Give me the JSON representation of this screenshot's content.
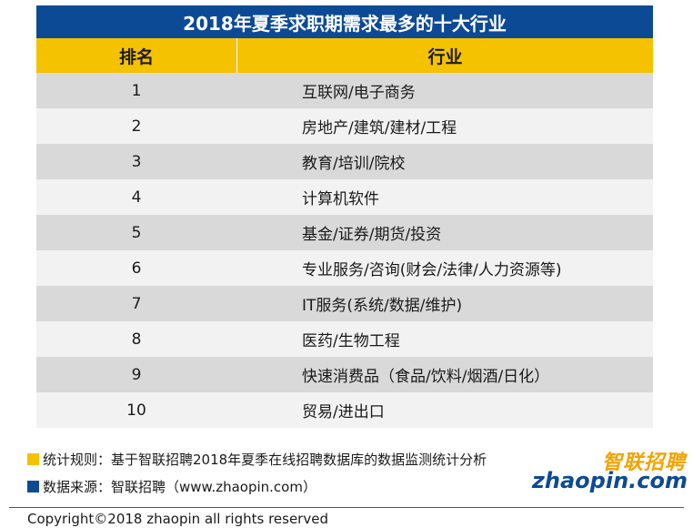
{
  "chart_data": {
    "type": "table",
    "title": "2018年夏季求职期需求最多的十大行业",
    "columns": [
      "排名",
      "行业"
    ],
    "rows": [
      [
        "1",
        "互联网/电子商务"
      ],
      [
        "2",
        "房地产/建筑/建材/工程"
      ],
      [
        "3",
        "教育/培训/院校"
      ],
      [
        "4",
        "计算机软件"
      ],
      [
        "5",
        "基金/证券/期货/投资"
      ],
      [
        "6",
        "专业服务/咨询(财会/法律/人力资源等)"
      ],
      [
        "7",
        "IT服务(系统/数据/维护)"
      ],
      [
        "8",
        "医药/生物工程"
      ],
      [
        "9",
        "快速消费品（食品/饮料/烟酒/日化）"
      ],
      [
        "10",
        "贸易/进出口"
      ]
    ]
  },
  "notes": [
    {
      "text": "统计规则：基于智联招聘2018年夏季在线招聘数据库的数据监测统计分析",
      "marker_color": "#f5c200"
    },
    {
      "text": "数据来源：智联招聘（www.zhaopin.com）",
      "marker_color": "#0d4a95"
    }
  ],
  "logo": {
    "cn": "智联招聘",
    "en": "zhaopin.com"
  },
  "footer": {
    "copyright": "Copyright©2018 zhaopin all rights reserved"
  },
  "colors": {
    "title_bg": "#0d4a95",
    "header_bg": "#f5c200",
    "row_dark": "#d9d9d9",
    "row_light": "#f2f2f2"
  }
}
